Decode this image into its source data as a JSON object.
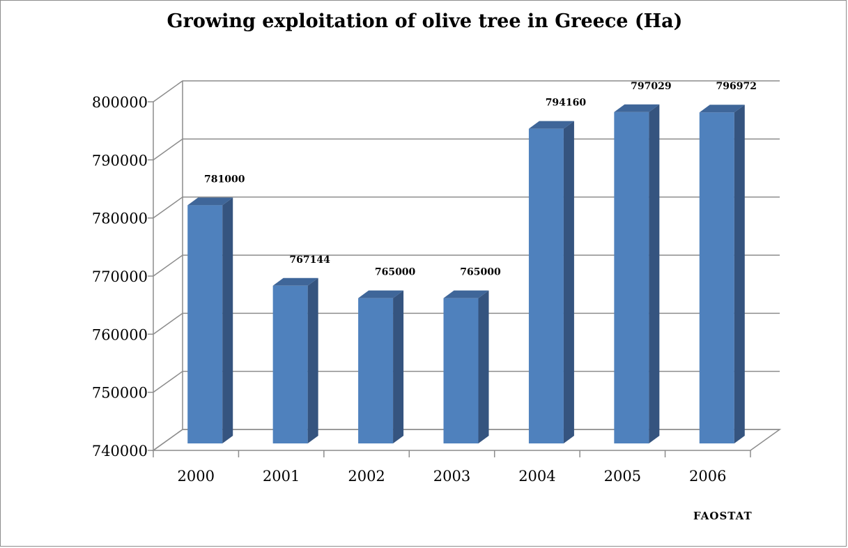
{
  "chart_data": {
    "type": "bar",
    "title": "Growing exploitation of olive tree in Greece (Ha)",
    "categories": [
      "2000",
      "2001",
      "2002",
      "2003",
      "2004",
      "2005",
      "2006"
    ],
    "values": [
      781000,
      767144,
      765000,
      765000,
      794160,
      797029,
      796972
    ],
    "value_labels": [
      "781000",
      "767144",
      "765000",
      "765000",
      "794160",
      "797029",
      "796972"
    ],
    "y_ticks": [
      "740000",
      "750000",
      "760000",
      "770000",
      "780000",
      "790000",
      "800000"
    ],
    "ylim": [
      740000,
      800000
    ],
    "xlabel": "",
    "ylabel": "",
    "grid": true,
    "legend": "none",
    "bar_color": "#4f81bd",
    "source": "FAOSTAT"
  }
}
